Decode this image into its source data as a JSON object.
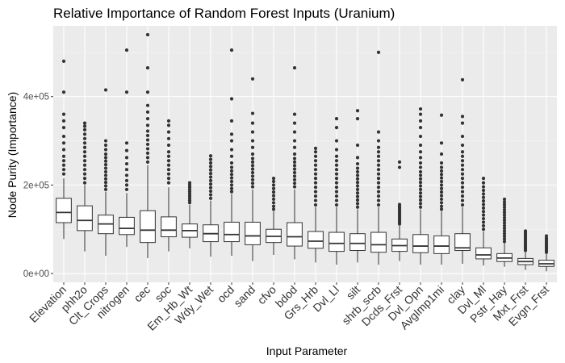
{
  "chart_data": {
    "type": "boxplot",
    "title": "Relative Importance of Random Forest Inputs (Uranium)",
    "xlabel": "Input Parameter",
    "ylabel": "Node Purity (Importance)",
    "ylim": [
      -20000,
      560000
    ],
    "yticks": [
      0,
      200000,
      400000
    ],
    "ytick_labels": [
      "0e+00",
      "2e+05",
      "4e+05"
    ],
    "grid": true,
    "colors": {
      "panel": "#ebebeb",
      "grid_major": "#ffffff",
      "grid_minor": "#f5f5f5",
      "box_fill": "#ffffff",
      "box_line": "#333333",
      "outlier": "#333333"
    },
    "categories": [
      "Elevation",
      "phh2o",
      "Clt_Crops",
      "nitrogen",
      "cec",
      "soc",
      "Em_Hb_Wt",
      "Wdy_Wet",
      "ocd",
      "sand",
      "cfvo",
      "bdod",
      "Grs_Hrb",
      "Dvl_Ll",
      "silt",
      "shrb_scrb",
      "Dcds_Frst",
      "Dvl_Opn",
      "AvgImp1mi",
      "clay",
      "Dvl_Ml",
      "Pstr_Hay",
      "Mxt_Frst",
      "Evgn_Frst"
    ],
    "boxes": [
      {
        "label": "Elevation",
        "q1": 115000,
        "median": 138000,
        "q3": 170000,
        "whisker_low": 78000,
        "whisker_high": 215000,
        "outliers": [
          225000,
          235000,
          245000,
          255000,
          265000,
          280000,
          295000,
          310000,
          330000,
          345000,
          360000,
          410000,
          480000
        ]
      },
      {
        "label": "phh2o",
        "q1": 97000,
        "median": 120000,
        "q3": 153000,
        "whisker_low": 50000,
        "whisker_high": 200000,
        "outliers": [
          205000,
          215000,
          225000,
          235000,
          245000,
          255000,
          265000,
          275000,
          285000,
          295000,
          305000,
          315000,
          325000,
          333000,
          340000
        ]
      },
      {
        "label": "Clt_Crops",
        "q1": 90000,
        "median": 112000,
        "q3": 132000,
        "whisker_low": 40000,
        "whisker_high": 185000,
        "outliers": [
          190000,
          198000,
          206000,
          214000,
          222000,
          230000,
          238000,
          246000,
          254000,
          262000,
          270000,
          280000,
          290000,
          300000,
          415000
        ]
      },
      {
        "label": "nitrogen",
        "q1": 88000,
        "median": 102000,
        "q3": 127000,
        "whisker_low": 60000,
        "whisker_high": 182000,
        "outliers": [
          190000,
          200000,
          210000,
          222000,
          235000,
          248000,
          262000,
          278000,
          295000,
          410000,
          505000
        ]
      },
      {
        "label": "cec",
        "q1": 70000,
        "median": 98000,
        "q3": 142000,
        "whisker_low": 35000,
        "whisker_high": 245000,
        "outliers": [
          252000,
          262000,
          272000,
          282000,
          292000,
          302000,
          312000,
          322000,
          335000,
          350000,
          365000,
          380000,
          410000,
          465000,
          540000
        ]
      },
      {
        "label": "soc",
        "q1": 83000,
        "median": 98000,
        "q3": 128000,
        "whisker_low": 50000,
        "whisker_high": 195000,
        "outliers": [
          205000,
          215000,
          225000,
          235000,
          245000,
          255000,
          265000,
          275000,
          290000,
          305000,
          320000,
          335000,
          345000
        ]
      },
      {
        "label": "Em_Hb_Wt",
        "q1": 82000,
        "median": 97000,
        "q3": 112000,
        "whisker_low": 57000,
        "whisker_high": 155000,
        "outliers": [
          160000,
          165000,
          170000,
          175000,
          180000,
          185000,
          190000,
          195000,
          200000,
          205000
        ]
      },
      {
        "label": "Wdy_Wet",
        "q1": 72000,
        "median": 90000,
        "q3": 110000,
        "whisker_low": 38000,
        "whisker_high": 165000,
        "outliers": [
          170000,
          178000,
          186000,
          194000,
          202000,
          210000,
          218000,
          226000,
          234000,
          242000,
          250000,
          258000,
          266000
        ]
      },
      {
        "label": "ocd",
        "q1": 72000,
        "median": 88000,
        "q3": 116000,
        "whisker_low": 40000,
        "whisker_high": 180000,
        "outliers": [
          185000,
          192000,
          200000,
          208000,
          216000,
          224000,
          232000,
          240000,
          250000,
          265000,
          280000,
          300000,
          315000,
          345000,
          395000,
          505000
        ]
      },
      {
        "label": "sand",
        "q1": 65000,
        "median": 85000,
        "q3": 116000,
        "whisker_low": 28000,
        "whisker_high": 190000,
        "outliers": [
          196000,
          204000,
          212000,
          220000,
          228000,
          236000,
          244000,
          252000,
          260000,
          270000,
          285000,
          300000,
          320000,
          340000,
          362000,
          440000
        ]
      },
      {
        "label": "cfvo",
        "q1": 70000,
        "median": 84000,
        "q3": 100000,
        "whisker_low": 42000,
        "whisker_high": 140000,
        "outliers": [
          145000,
          152000,
          160000,
          168000,
          176000,
          184000,
          192000,
          200000,
          208000,
          215000
        ]
      },
      {
        "label": "bdod",
        "q1": 62000,
        "median": 83000,
        "q3": 115000,
        "whisker_low": 32000,
        "whisker_high": 190000,
        "outliers": [
          196000,
          204000,
          212000,
          220000,
          228000,
          236000,
          244000,
          252000,
          260000,
          270000,
          285000,
          300000,
          320000,
          340000,
          360000,
          465000
        ]
      },
      {
        "label": "Grs_Hrb",
        "q1": 57000,
        "median": 73000,
        "q3": 95000,
        "whisker_low": 25000,
        "whisker_high": 150000,
        "outliers": [
          155000,
          165000,
          175000,
          185000,
          195000,
          205000,
          215000,
          225000,
          235000,
          245000,
          255000,
          265000,
          275000,
          283000
        ]
      },
      {
        "label": "Dvl_Ll",
        "q1": 50000,
        "median": 68000,
        "q3": 93000,
        "whisker_low": 20000,
        "whisker_high": 150000,
        "outliers": [
          155000,
          165000,
          175000,
          185000,
          195000,
          205000,
          215000,
          225000,
          235000,
          245000,
          255000,
          265000,
          280000,
          300000,
          330000,
          350000
        ]
      },
      {
        "label": "silt",
        "q1": 52000,
        "median": 68000,
        "q3": 90000,
        "whisker_low": 25000,
        "whisker_high": 145000,
        "outliers": [
          150000,
          158000,
          166000,
          174000,
          182000,
          190000,
          198000,
          206000,
          214000,
          222000,
          230000,
          238000,
          248000,
          262000,
          290000,
          350000,
          368000
        ]
      },
      {
        "label": "shrb_scrb",
        "q1": 48000,
        "median": 65000,
        "q3": 93000,
        "whisker_low": 20000,
        "whisker_high": 150000,
        "outliers": [
          155000,
          165000,
          175000,
          185000,
          195000,
          205000,
          215000,
          225000,
          235000,
          245000,
          255000,
          265000,
          275000,
          285000,
          300000,
          320000,
          500000
        ]
      },
      {
        "label": "Dcds_Frst",
        "q1": 50000,
        "median": 63000,
        "q3": 78000,
        "whisker_low": 28000,
        "whisker_high": 108000,
        "outliers": [
          112000,
          116000,
          120000,
          124000,
          128000,
          132000,
          136000,
          140000,
          144000,
          148000,
          152000,
          156000,
          240000,
          252000
        ]
      },
      {
        "label": "Dvl_Opn",
        "q1": 47000,
        "median": 62000,
        "q3": 88000,
        "whisker_low": 20000,
        "whisker_high": 145000,
        "outliers": [
          150000,
          158000,
          166000,
          174000,
          182000,
          190000,
          198000,
          206000,
          214000,
          222000,
          230000,
          240000,
          250000,
          262000,
          275000,
          290000,
          310000,
          330000,
          345000,
          360000,
          372000
        ]
      },
      {
        "label": "AvgImp1mi",
        "q1": 45000,
        "median": 62000,
        "q3": 85000,
        "whisker_low": 20000,
        "whisker_high": 140000,
        "outliers": [
          145000,
          152000,
          160000,
          168000,
          176000,
          184000,
          192000,
          200000,
          208000,
          216000,
          224000,
          232000,
          240000,
          250000,
          270000,
          295000,
          358000
        ]
      },
      {
        "label": "clay",
        "q1": 52000,
        "median": 58000,
        "q3": 90000,
        "whisker_low": 22000,
        "whisker_high": 150000,
        "outliers": [
          155000,
          165000,
          175000,
          185000,
          195000,
          205000,
          215000,
          225000,
          235000,
          245000,
          255000,
          265000,
          275000,
          290000,
          310000,
          340000,
          355000,
          438000
        ]
      },
      {
        "label": "Dvl_Ml",
        "q1": 33000,
        "median": 42000,
        "q3": 58000,
        "whisker_low": 18000,
        "whisker_high": 95000,
        "outliers": [
          100000,
          108000,
          116000,
          124000,
          132000,
          140000,
          148000,
          156000,
          164000,
          172000,
          180000,
          188000,
          196000,
          205000,
          215000
        ]
      },
      {
        "label": "Pstr_Hay",
        "q1": 27000,
        "median": 35000,
        "q3": 45000,
        "whisker_low": 15000,
        "whisker_high": 68000,
        "outliers": [
          72000,
          78000,
          84000,
          90000,
          96000,
          102000,
          108000,
          114000,
          120000,
          126000,
          132000,
          138000,
          144000,
          150000,
          156000,
          162000,
          168000
        ]
      },
      {
        "label": "Mxt_Frst",
        "q1": 20000,
        "median": 27000,
        "q3": 34000,
        "whisker_low": 8000,
        "whisker_high": 48000,
        "outliers": [
          52000,
          56000,
          60000,
          64000,
          68000,
          72000,
          76000,
          80000,
          84000,
          88000,
          92000,
          96000
        ]
      },
      {
        "label": "Evgn_Frst",
        "q1": 16000,
        "median": 22000,
        "q3": 30000,
        "whisker_low": 5000,
        "whisker_high": 44000,
        "outliers": [
          48000,
          52000,
          56000,
          60000,
          64000,
          68000,
          72000,
          76000,
          80000,
          85000
        ]
      }
    ]
  }
}
